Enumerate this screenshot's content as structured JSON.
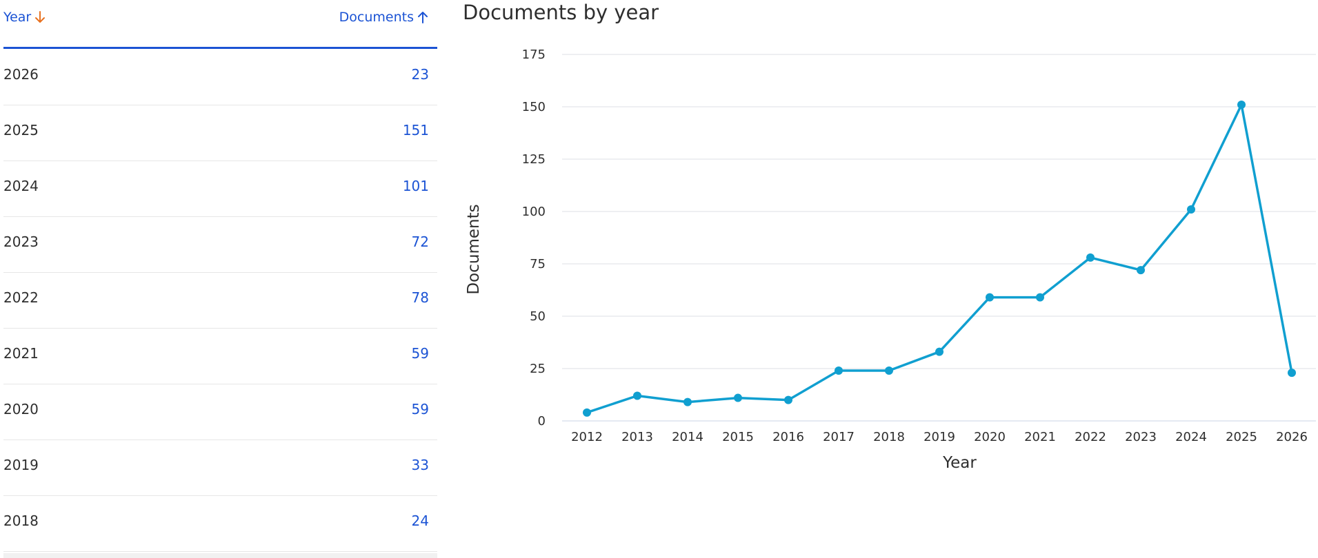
{
  "table": {
    "columns": {
      "year": "Year",
      "documents": "Documents"
    },
    "rows": [
      {
        "year": "2026",
        "documents": "23"
      },
      {
        "year": "2025",
        "documents": "151"
      },
      {
        "year": "2024",
        "documents": "101"
      },
      {
        "year": "2023",
        "documents": "72"
      },
      {
        "year": "2022",
        "documents": "78"
      },
      {
        "year": "2021",
        "documents": "59"
      },
      {
        "year": "2020",
        "documents": "59"
      },
      {
        "year": "2019",
        "documents": "33"
      },
      {
        "year": "2018",
        "documents": "24"
      }
    ],
    "sort": {
      "year": "descending",
      "documents": "ascending"
    },
    "icons": {
      "year_sort": "arrow-down-icon",
      "documents_sort": "arrow-up-icon"
    }
  },
  "colors": {
    "link": "#1b53d4",
    "sort_arrow": "#e8711f",
    "line": "#109fd0",
    "header_rule": "#1b53d4"
  },
  "chart_data": {
    "type": "line",
    "title": "Documents by year",
    "xlabel": "Year",
    "ylabel": "Documents",
    "x": [
      2012,
      2013,
      2014,
      2015,
      2016,
      2017,
      2018,
      2019,
      2020,
      2021,
      2022,
      2023,
      2024,
      2025,
      2026
    ],
    "values": [
      4,
      12,
      9,
      11,
      10,
      24,
      24,
      33,
      59,
      59,
      78,
      72,
      101,
      151,
      23
    ],
    "ylim": [
      0,
      175
    ],
    "yticks": [
      0,
      25,
      50,
      75,
      100,
      125,
      150,
      175
    ],
    "grid": true
  }
}
